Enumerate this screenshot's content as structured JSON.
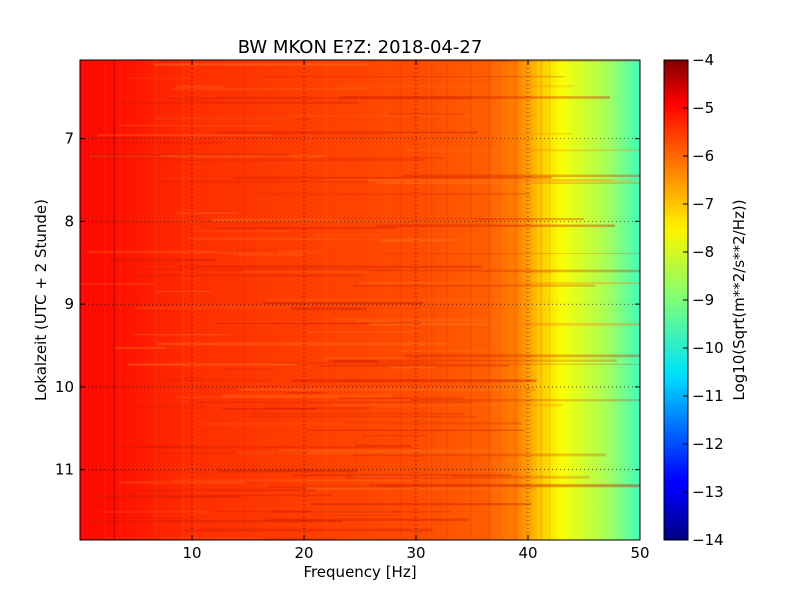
{
  "chart_data": {
    "type": "heatmap",
    "title": "BW MKON E?Z: 2018-04-27",
    "xlabel": "Frequency [Hz]",
    "ylabel": "Lokalzeit (UTC + 2 Stunde)",
    "xlim": [
      0,
      50
    ],
    "ylim": [
      11.85,
      6.05
    ],
    "x_ticks": [
      {
        "value": 10,
        "label": "10"
      },
      {
        "value": 20,
        "label": "20"
      },
      {
        "value": 30,
        "label": "30"
      },
      {
        "value": 40,
        "label": "40"
      },
      {
        "value": 50,
        "label": "50"
      }
    ],
    "y_ticks": [
      {
        "value": 7,
        "label": "7"
      },
      {
        "value": 8,
        "label": "8"
      },
      {
        "value": 9,
        "label": "9"
      },
      {
        "value": 10,
        "label": "10"
      },
      {
        "value": 11,
        "label": "11"
      }
    ],
    "grid": true,
    "colormap": "jet",
    "colorbar": {
      "label": "Log10(Sqrt(m**2/s**2/Hz))",
      "range": [
        -14,
        -4
      ],
      "ticks": [
        {
          "value": -4,
          "label": "−4"
        },
        {
          "value": -5,
          "label": "−5"
        },
        {
          "value": -6,
          "label": "−6"
        },
        {
          "value": -7,
          "label": "−7"
        },
        {
          "value": -8,
          "label": "−8"
        },
        {
          "value": -9,
          "label": "−9"
        },
        {
          "value": -10,
          "label": "−10"
        },
        {
          "value": -11,
          "label": "−11"
        },
        {
          "value": -12,
          "label": "−12"
        },
        {
          "value": -13,
          "label": "−13"
        },
        {
          "value": -14,
          "label": "−14"
        }
      ]
    },
    "spectrum_profile": [
      {
        "freq": 0,
        "value": -5.3
      },
      {
        "freq": 3,
        "value": -5.4
      },
      {
        "freq": 10,
        "value": -5.7
      },
      {
        "freq": 20,
        "value": -5.85
      },
      {
        "freq": 30,
        "value": -6.0
      },
      {
        "freq": 36,
        "value": -6.15
      },
      {
        "freq": 39,
        "value": -6.5
      },
      {
        "freq": 41,
        "value": -7.2
      },
      {
        "freq": 43,
        "value": -7.8
      },
      {
        "freq": 45,
        "value": -8.2
      },
      {
        "freq": 47,
        "value": -8.6
      },
      {
        "freq": 48.5,
        "value": -9.1
      },
      {
        "freq": 50,
        "value": -9.6
      }
    ]
  }
}
